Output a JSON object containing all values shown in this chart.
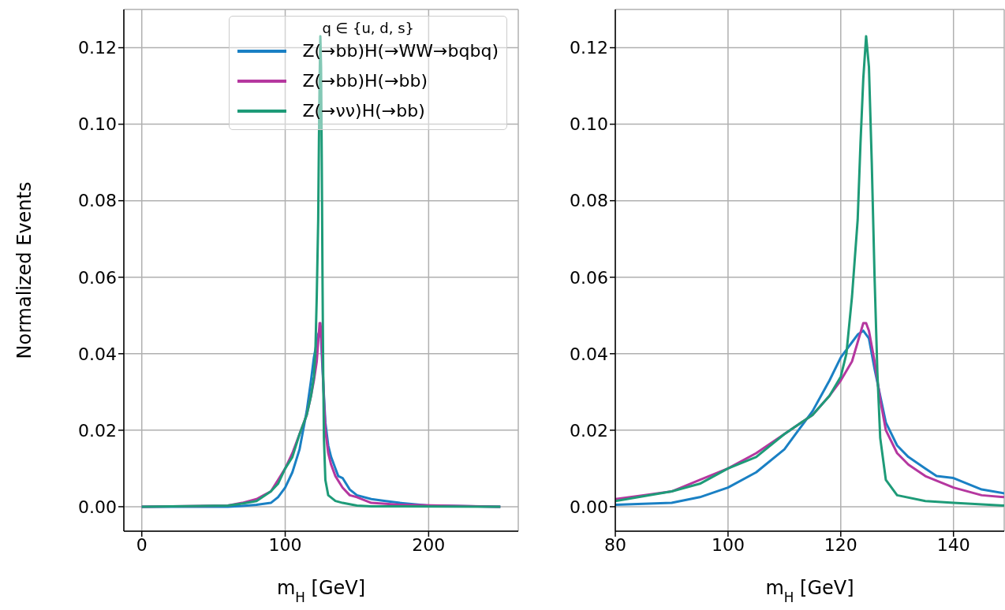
{
  "chart_data": [
    {
      "type": "line",
      "xlabel": "m$_{H}$ [GeV]",
      "ylabel": "Normalized Events",
      "legend_title": "q ∈ {u, d, s}",
      "legend": "top right",
      "grid": true,
      "xlim": [
        -12.5,
        262.5
      ],
      "xticks": [
        0,
        100,
        200
      ],
      "ylim": [
        -0.0064,
        0.13
      ],
      "yticks": [
        {
          "value": 0,
          "label": "0.00"
        },
        {
          "value": 0.02,
          "label": "0.02"
        },
        {
          "value": 0.04,
          "label": "0.04"
        },
        {
          "value": 0.06,
          "label": "0.06"
        },
        {
          "value": 0.08,
          "label": "0.08"
        },
        {
          "value": 0.1,
          "label": "0.10"
        },
        {
          "value": 0.12,
          "label": "0.12"
        }
      ],
      "series": [
        {
          "name": "Z(→bb)H(→WW→bqbq)",
          "color": "#1a80c4",
          "x": [
            0,
            60,
            70,
            80,
            90,
            95,
            100,
            105,
            110,
            112,
            115,
            118,
            120,
            121,
            122,
            123,
            124,
            125,
            126,
            127,
            128,
            130,
            132,
            135,
            137,
            140,
            145,
            150,
            160,
            170,
            180,
            200,
            250
          ],
          "values": [
            0,
            0,
            0.0002,
            0.0005,
            0.001,
            0.0025,
            0.005,
            0.009,
            0.015,
            0.019,
            0.025,
            0.033,
            0.039,
            0.041,
            0.043,
            0.045,
            0.046,
            0.044,
            0.036,
            0.029,
            0.022,
            0.016,
            0.013,
            0.01,
            0.008,
            0.0075,
            0.0045,
            0.003,
            0.002,
            0.0015,
            0.001,
            0.0003,
            0
          ]
        },
        {
          "name": "Z(→bb)H(→bb)",
          "color": "#b5379f",
          "x": [
            0,
            60,
            70,
            80,
            85,
            90,
            95,
            100,
            105,
            110,
            115,
            118,
            120,
            122,
            123,
            124,
            124.5,
            125,
            126,
            127,
            128,
            130,
            132,
            135,
            140,
            145,
            150,
            160,
            180,
            250
          ],
          "values": [
            0,
            0.0003,
            0.001,
            0.002,
            0.003,
            0.004,
            0.007,
            0.01,
            0.014,
            0.019,
            0.024,
            0.029,
            0.033,
            0.038,
            0.043,
            0.048,
            0.048,
            0.046,
            0.038,
            0.028,
            0.02,
            0.014,
            0.011,
            0.008,
            0.005,
            0.003,
            0.0025,
            0.001,
            0.0005,
            0
          ]
        },
        {
          "name": "Z(→νν)H(→bb)",
          "color": "#1e9b78",
          "x": [
            0,
            60,
            70,
            80,
            90,
            95,
            100,
            105,
            110,
            115,
            118,
            120,
            121,
            122,
            123,
            123.5,
            124,
            124.5,
            125,
            125.5,
            126,
            126.5,
            127,
            128,
            130,
            135,
            140,
            150,
            160,
            250
          ],
          "values": [
            0,
            0.0003,
            0.0008,
            0.0015,
            0.004,
            0.006,
            0.01,
            0.013,
            0.019,
            0.024,
            0.029,
            0.034,
            0.04,
            0.055,
            0.075,
            0.095,
            0.112,
            0.123,
            0.115,
            0.09,
            0.06,
            0.035,
            0.018,
            0.007,
            0.003,
            0.0015,
            0.001,
            0.0003,
            0.0001,
            0
          ]
        }
      ]
    },
    {
      "type": "line",
      "xlabel": "m$_{H}$ [GeV]",
      "grid": true,
      "xlim": [
        80,
        149
      ],
      "xticks": [
        80,
        100,
        120,
        140
      ],
      "ylim": [
        -0.0064,
        0.13
      ],
      "yticks": [
        {
          "value": 0,
          "label": "0.00"
        },
        {
          "value": 0.02,
          "label": "0.02"
        },
        {
          "value": 0.04,
          "label": "0.04"
        },
        {
          "value": 0.06,
          "label": "0.06"
        },
        {
          "value": 0.08,
          "label": "0.08"
        },
        {
          "value": 0.1,
          "label": "0.10"
        },
        {
          "value": 0.12,
          "label": "0.12"
        }
      ],
      "series": [
        {
          "color": "#1a80c4",
          "x": [
            80,
            90,
            95,
            100,
            105,
            110,
            112,
            115,
            118,
            120,
            121,
            122,
            123,
            124,
            125,
            126,
            127,
            128,
            130,
            132,
            135,
            137,
            140,
            145,
            149
          ],
          "values": [
            0.0005,
            0.001,
            0.0025,
            0.005,
            0.009,
            0.015,
            0.019,
            0.025,
            0.033,
            0.039,
            0.041,
            0.043,
            0.045,
            0.046,
            0.044,
            0.036,
            0.029,
            0.022,
            0.016,
            0.013,
            0.01,
            0.008,
            0.0075,
            0.0045,
            0.0035
          ]
        },
        {
          "color": "#b5379f",
          "x": [
            80,
            85,
            90,
            95,
            100,
            105,
            110,
            115,
            118,
            120,
            122,
            123,
            124,
            124.5,
            125,
            126,
            127,
            128,
            130,
            132,
            135,
            140,
            145,
            149
          ],
          "values": [
            0.002,
            0.003,
            0.004,
            0.007,
            0.01,
            0.014,
            0.019,
            0.024,
            0.029,
            0.033,
            0.038,
            0.043,
            0.048,
            0.048,
            0.046,
            0.038,
            0.028,
            0.02,
            0.014,
            0.011,
            0.008,
            0.005,
            0.003,
            0.0025
          ]
        },
        {
          "color": "#1e9b78",
          "x": [
            80,
            90,
            95,
            100,
            105,
            110,
            115,
            118,
            120,
            121,
            122,
            123,
            123.5,
            124,
            124.5,
            125,
            125.5,
            126,
            126.5,
            127,
            128,
            130,
            135,
            140,
            149
          ],
          "values": [
            0.0015,
            0.004,
            0.006,
            0.01,
            0.013,
            0.019,
            0.024,
            0.029,
            0.034,
            0.04,
            0.055,
            0.075,
            0.095,
            0.112,
            0.123,
            0.115,
            0.09,
            0.06,
            0.035,
            0.018,
            0.007,
            0.003,
            0.0015,
            0.001,
            0.0003
          ]
        }
      ]
    }
  ]
}
